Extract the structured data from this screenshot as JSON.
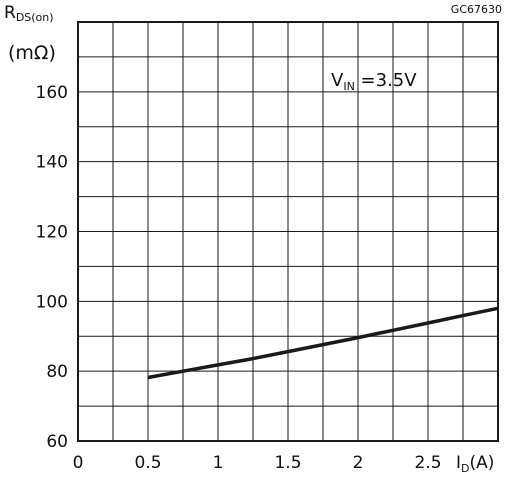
{
  "chart_data": {
    "type": "line",
    "code": "GC67630",
    "ylabel_main": "R",
    "ylabel_sub": "DS(on)",
    "yunit": "(mΩ)",
    "xlabel_main": "I",
    "xlabel_sub": "D",
    "xunit": "(A)",
    "annotation_main": "V",
    "annotation_sub": "IN",
    "annotation_value": " =3.5V",
    "xlim": [
      0,
      3
    ],
    "ylim": [
      60,
      180
    ],
    "x_ticks": [
      0,
      0.5,
      1,
      1.5,
      2,
      2.5
    ],
    "x_tick_labels": [
      "0",
      "0.5",
      "1",
      "1.5",
      "2",
      "2.5"
    ],
    "y_ticks": [
      60,
      80,
      100,
      120,
      140,
      160
    ],
    "y_tick_labels": [
      "60",
      "80",
      "100",
      "120",
      "140",
      "160"
    ],
    "grid": true,
    "series": [
      {
        "x": [
          0.5,
          0.75,
          1.0,
          1.25,
          1.5,
          1.75,
          2.0,
          2.25,
          2.5,
          2.75,
          3.0
        ],
        "y": [
          78.2,
          80.0,
          81.8,
          83.6,
          85.6,
          87.6,
          89.6,
          91.7,
          93.8,
          95.9,
          98.0
        ]
      }
    ],
    "colors": {
      "line": "#1a1a1a",
      "grid": "#1a1a1a"
    }
  }
}
